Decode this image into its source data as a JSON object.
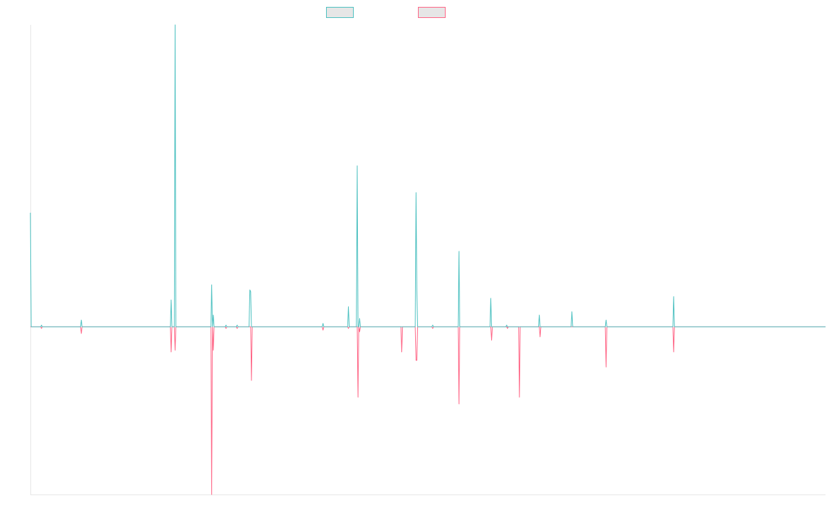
{
  "chart_data": {
    "type": "line",
    "title": "",
    "xlabel": "",
    "ylabel": "",
    "grid": false,
    "legend_position": "top-center",
    "xlim": [
      0,
      1000
    ],
    "ylim": [
      -100,
      180
    ],
    "colors": {
      "series_a": "#4bc0c0",
      "series_b": "#ff6384",
      "legend_fill": "#e6e6e6",
      "axis": "#e6e6e6"
    },
    "series": [
      {
        "key": "a",
        "points": [
          [
            0,
            68
          ],
          [
            1,
            0
          ],
          [
            13,
            0
          ],
          [
            14,
            1
          ],
          [
            15,
            0
          ],
          [
            63,
            0
          ],
          [
            64,
            4
          ],
          [
            65,
            0
          ],
          [
            176,
            0
          ],
          [
            177,
            16
          ],
          [
            178,
            0
          ],
          [
            181,
            0
          ],
          [
            182,
            180
          ],
          [
            183,
            0
          ],
          [
            227,
            0
          ],
          [
            228,
            25
          ],
          [
            229,
            0
          ],
          [
            230,
            7
          ],
          [
            231,
            0
          ],
          [
            245,
            0
          ],
          [
            246,
            1
          ],
          [
            247,
            0
          ],
          [
            259,
            0
          ],
          [
            260,
            1
          ],
          [
            261,
            0
          ],
          [
            275,
            0
          ],
          [
            276,
            22
          ],
          [
            277,
            21
          ],
          [
            278,
            0
          ],
          [
            367,
            0
          ],
          [
            368,
            2
          ],
          [
            369,
            0
          ],
          [
            399,
            0
          ],
          [
            400,
            12
          ],
          [
            401,
            0
          ],
          [
            410,
            0
          ],
          [
            411,
            96
          ],
          [
            412,
            0
          ],
          [
            413,
            0
          ],
          [
            414,
            5
          ],
          [
            415,
            0
          ],
          [
            484,
            0
          ],
          [
            485,
            80
          ],
          [
            486,
            22
          ],
          [
            487,
            0
          ],
          [
            505,
            0
          ],
          [
            506,
            1
          ],
          [
            507,
            0
          ],
          [
            538,
            0
          ],
          [
            539,
            45
          ],
          [
            540,
            0
          ],
          [
            578,
            0
          ],
          [
            579,
            17
          ],
          [
            580,
            0
          ],
          [
            598,
            0
          ],
          [
            599,
            1
          ],
          [
            600,
            0
          ],
          [
            639,
            0
          ],
          [
            640,
            7
          ],
          [
            641,
            0
          ],
          [
            680,
            0
          ],
          [
            681,
            9
          ],
          [
            682,
            0
          ],
          [
            723,
            0
          ],
          [
            724,
            4
          ],
          [
            725,
            0
          ],
          [
            808,
            0
          ],
          [
            809,
            18
          ],
          [
            810,
            0
          ],
          [
            1000,
            0
          ]
        ]
      },
      {
        "key": "b",
        "points": [
          [
            0,
            0
          ],
          [
            13,
            0
          ],
          [
            14,
            -1
          ],
          [
            15,
            0
          ],
          [
            63,
            0
          ],
          [
            64,
            -4
          ],
          [
            65,
            0
          ],
          [
            176,
            0
          ],
          [
            177,
            -15
          ],
          [
            178,
            0
          ],
          [
            181,
            0
          ],
          [
            182,
            -14
          ],
          [
            183,
            0
          ],
          [
            227,
            0
          ],
          [
            228,
            -100
          ],
          [
            229,
            0
          ],
          [
            230,
            -14
          ],
          [
            231,
            0
          ],
          [
            245,
            0
          ],
          [
            246,
            -1
          ],
          [
            247,
            0
          ],
          [
            259,
            0
          ],
          [
            260,
            -1
          ],
          [
            261,
            0
          ],
          [
            277,
            0
          ],
          [
            278,
            -32
          ],
          [
            279,
            0
          ],
          [
            367,
            0
          ],
          [
            368,
            -2
          ],
          [
            369,
            0
          ],
          [
            399,
            0
          ],
          [
            400,
            -1
          ],
          [
            401,
            0
          ],
          [
            411,
            0
          ],
          [
            412,
            -42
          ],
          [
            413,
            0
          ],
          [
            414,
            -3
          ],
          [
            415,
            0
          ],
          [
            466,
            0
          ],
          [
            467,
            -15
          ],
          [
            468,
            0
          ],
          [
            484,
            0
          ],
          [
            485,
            -20
          ],
          [
            486,
            -20
          ],
          [
            487,
            0
          ],
          [
            505,
            0
          ],
          [
            506,
            -1
          ],
          [
            507,
            0
          ],
          [
            538,
            0
          ],
          [
            539,
            -46
          ],
          [
            540,
            0
          ],
          [
            579,
            0
          ],
          [
            580,
            -8
          ],
          [
            581,
            0
          ],
          [
            599,
            0
          ],
          [
            600,
            -1
          ],
          [
            601,
            0
          ],
          [
            614,
            0
          ],
          [
            615,
            -42
          ],
          [
            616,
            0
          ],
          [
            640,
            0
          ],
          [
            641,
            -6
          ],
          [
            642,
            0
          ],
          [
            723,
            0
          ],
          [
            724,
            -24
          ],
          [
            725,
            0
          ],
          [
            808,
            0
          ],
          [
            809,
            -15
          ],
          [
            810,
            0
          ],
          [
            1000,
            0
          ]
        ]
      }
    ]
  }
}
